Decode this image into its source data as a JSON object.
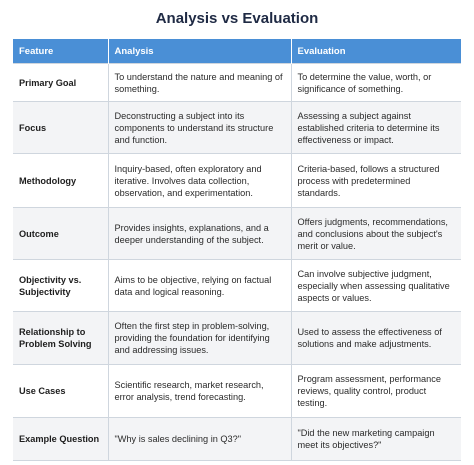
{
  "title": "Analysis vs Evaluation",
  "headers": [
    "Feature",
    "Analysis",
    "Evaluation"
  ],
  "rows": [
    {
      "feature": "Primary Goal",
      "analysis": "To understand the nature and meaning of something.",
      "evaluation": "To determine the value, worth, or significance of something."
    },
    {
      "feature": "Focus",
      "analysis": "Deconstructing a subject into its components to understand its structure and function.",
      "evaluation": "Assessing a subject against established criteria to determine its effectiveness or impact."
    },
    {
      "feature": "Methodology",
      "analysis": "Inquiry-based, often exploratory and iterative. Involves data collection, observation, and experimentation.",
      "evaluation": "Criteria-based, follows a structured process with predetermined standards."
    },
    {
      "feature": "Outcome",
      "analysis": "Provides insights, explanations, and a deeper understanding of the subject.",
      "evaluation": "Offers judgments, recommendations, and conclusions about the subject's merit or value."
    },
    {
      "feature": "Objectivity vs. Subjectivity",
      "analysis": "Aims to be objective, relying on factual data and logical reasoning.",
      "evaluation": "Can involve subjective judgment, especially when assessing qualitative aspects or values."
    },
    {
      "feature": "Relationship to Problem Solving",
      "analysis": "Often the first step in problem-solving, providing the foundation for identifying and addressing issues.",
      "evaluation": "Used to assess the effectiveness of solutions and make adjustments."
    },
    {
      "feature": "Use Cases",
      "analysis": "Scientific research, market research, error analysis, trend forecasting.",
      "evaluation": "Program assessment, performance reviews, quality control, product testing."
    },
    {
      "feature": "Example Question",
      "analysis": "\"Why is sales declining in Q3?\"",
      "evaluation": "\"Did the new marketing campaign meet its objectives?\""
    }
  ]
}
